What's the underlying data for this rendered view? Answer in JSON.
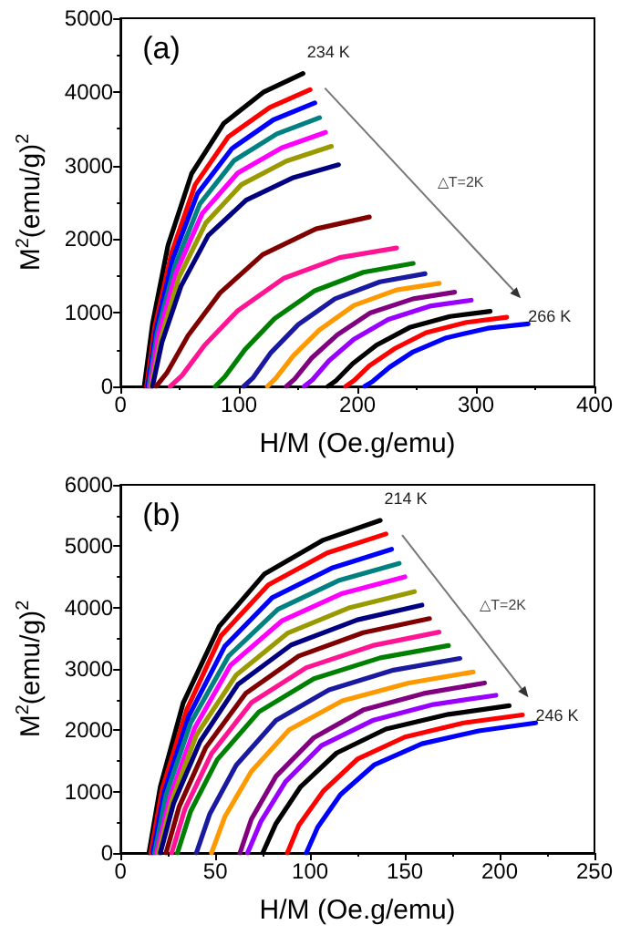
{
  "chart_data": [
    {
      "type": "line",
      "xlabel": "H/M (Oe.g/emu)",
      "ylabel": "M$^{2}$(emu/g)$^{2}$",
      "xlim": [
        0,
        400
      ],
      "ylim": [
        0,
        5000
      ],
      "xticks": [
        0,
        100,
        200,
        300,
        400
      ],
      "yticks": [
        0,
        1000,
        2000,
        3000,
        4000,
        5000
      ],
      "annotations": [
        "(a)",
        "234 K",
        "△T=2K",
        "266 K"
      ],
      "series": [
        {
          "color": "#000000",
          "x": [
            20,
            27,
            40,
            60,
            87,
            121,
            154
          ],
          "values": [
            0,
            850,
            1910,
            2890,
            3570,
            4000,
            4250
          ]
        },
        {
          "color": "#ff0000",
          "x": [
            22,
            29,
            43,
            63,
            91,
            126,
            160
          ],
          "values": [
            0,
            810,
            1810,
            2740,
            3390,
            3790,
            4030
          ]
        },
        {
          "color": "#0000ff",
          "x": [
            23,
            30,
            44,
            65,
            94,
            129,
            164
          ],
          "values": [
            0,
            770,
            1730,
            2620,
            3230,
            3620,
            3850
          ]
        },
        {
          "color": "#008080",
          "x": [
            24,
            31,
            46,
            67,
            96,
            132,
            168
          ],
          "values": [
            0,
            730,
            1640,
            2480,
            3070,
            3430,
            3650
          ]
        },
        {
          "color": "#ff00ff",
          "x": [
            25,
            32,
            47,
            69,
            99,
            136,
            173
          ],
          "values": [
            0,
            690,
            1550,
            2350,
            2900,
            3240,
            3450
          ]
        },
        {
          "color": "#999900",
          "x": [
            26,
            34,
            49,
            72,
            102,
            140,
            178
          ],
          "values": [
            0,
            650,
            1470,
            2220,
            2740,
            3060,
            3260
          ]
        },
        {
          "color": "#000080",
          "x": [
            27,
            35,
            51,
            74,
            106,
            145,
            184
          ],
          "values": [
            0,
            600,
            1360,
            2050,
            2530,
            2830,
            3010
          ]
        },
        {
          "color": "#800000",
          "x": [
            30,
            39,
            57,
            84,
            120,
            165,
            210
          ],
          "values": [
            0,
            180,
            690,
            1270,
            1790,
            2140,
            2300
          ]
        },
        {
          "color": "#ff1493",
          "x": [
            42,
            52,
            71,
            99,
            138,
            185,
            233
          ],
          "values": [
            0,
            150,
            560,
            1030,
            1470,
            1750,
            1880
          ]
        },
        {
          "color": "#008000",
          "x": [
            80,
            88,
            105,
            130,
            164,
            205,
            247
          ],
          "values": [
            0,
            130,
            500,
            920,
            1300,
            1550,
            1670
          ]
        },
        {
          "color": "#1a1aa0",
          "x": [
            104,
            112,
            127,
            150,
            181,
            219,
            257
          ],
          "values": [
            0,
            120,
            460,
            840,
            1190,
            1420,
            1530
          ]
        },
        {
          "color": "#ff9900",
          "x": [
            124,
            131,
            146,
            168,
            197,
            233,
            269
          ],
          "values": [
            0,
            110,
            420,
            770,
            1100,
            1310,
            1400
          ]
        },
        {
          "color": "#800080",
          "x": [
            140,
            147,
            161,
            183,
            211,
            247,
            282
          ],
          "values": [
            0,
            100,
            380,
            700,
            1000,
            1190,
            1280
          ]
        },
        {
          "color": "#9900ff",
          "x": [
            155,
            162,
            176,
            197,
            226,
            261,
            296
          ],
          "values": [
            0,
            90,
            350,
            640,
            910,
            1090,
            1170
          ]
        },
        {
          "color": "#000000",
          "x": [
            175,
            182,
            196,
            216,
            244,
            278,
            312
          ],
          "values": [
            0,
            80,
            310,
            560,
            800,
            950,
            1020
          ]
        },
        {
          "color": "#ff0000",
          "x": [
            190,
            197,
            210,
            231,
            258,
            292,
            326
          ],
          "values": [
            0,
            80,
            280,
            510,
            730,
            870,
            940
          ]
        },
        {
          "color": "#0000ff",
          "x": [
            206,
            213,
            227,
            247,
            275,
            310,
            344
          ],
          "values": [
            0,
            70,
            260,
            470,
            660,
            790,
            850
          ]
        }
      ]
    },
    {
      "type": "line",
      "xlabel": "H/M (Oe.g/emu)",
      "ylabel": "M$^{2}$(emu/g)$^{2}$",
      "xlim": [
        0,
        250
      ],
      "ylim": [
        0,
        6000
      ],
      "xticks": [
        0,
        50,
        100,
        150,
        200,
        250
      ],
      "yticks": [
        0,
        1000,
        2000,
        3000,
        4000,
        5000,
        6000
      ],
      "annotations": [
        "(b)",
        "214 K",
        "△T=2K",
        "246 K"
      ],
      "series": [
        {
          "color": "#000000",
          "x": [
            15,
            21,
            33,
            52,
            76,
            107,
            137
          ],
          "values": [
            0,
            1080,
            2440,
            3690,
            4550,
            5100,
            5420
          ]
        },
        {
          "color": "#ff0000",
          "x": [
            16,
            22,
            35,
            53,
            78,
            109,
            140
          ],
          "values": [
            0,
            1040,
            2340,
            3540,
            4370,
            4890,
            5200
          ]
        },
        {
          "color": "#0000ff",
          "x": [
            17,
            23,
            36,
            55,
            80,
            112,
            143
          ],
          "values": [
            0,
            990,
            2230,
            3370,
            4160,
            4650,
            4950
          ]
        },
        {
          "color": "#008080",
          "x": [
            18,
            24,
            37,
            57,
            83,
            115,
            147
          ],
          "values": [
            0,
            940,
            2120,
            3210,
            3970,
            4440,
            4720
          ]
        },
        {
          "color": "#ff00ff",
          "x": [
            19,
            26,
            39,
            58,
            85,
            117,
            150
          ],
          "values": [
            0,
            900,
            2030,
            3060,
            3780,
            4230,
            4500
          ]
        },
        {
          "color": "#999900",
          "x": [
            20,
            27,
            40,
            61,
            88,
            121,
            155
          ],
          "values": [
            0,
            850,
            1920,
            2900,
            3580,
            4000,
            4260
          ]
        },
        {
          "color": "#000080",
          "x": [
            21,
            28,
            42,
            62,
            90,
            125,
            159
          ],
          "values": [
            0,
            810,
            1820,
            2750,
            3390,
            3800,
            4040
          ]
        },
        {
          "color": "#800000",
          "x": [
            24,
            31,
            45,
            66,
            94,
            128,
            163
          ],
          "values": [
            0,
            760,
            1720,
            2600,
            3210,
            3590,
            3820
          ]
        },
        {
          "color": "#ff1493",
          "x": [
            27,
            34,
            48,
            69,
            98,
            133,
            168
          ],
          "values": [
            0,
            720,
            1620,
            2450,
            3020,
            3380,
            3600
          ]
        },
        {
          "color": "#008000",
          "x": [
            30,
            37,
            51,
            73,
            102,
            137,
            173
          ],
          "values": [
            0,
            680,
            1520,
            2300,
            2840,
            3180,
            3380
          ]
        },
        {
          "color": "#1a1aa0",
          "x": [
            40,
            47,
            61,
            82,
            110,
            144,
            179
          ],
          "values": [
            0,
            630,
            1430,
            2160,
            2660,
            2980,
            3170
          ]
        },
        {
          "color": "#ff9900",
          "x": [
            48,
            55,
            69,
            89,
            117,
            152,
            186
          ],
          "values": [
            0,
            590,
            1330,
            2010,
            2480,
            2770,
            2950
          ]
        },
        {
          "color": "#800080",
          "x": [
            63,
            69,
            82,
            102,
            128,
            160,
            192
          ],
          "values": [
            0,
            550,
            1250,
            1880,
            2330,
            2600,
            2770
          ]
        },
        {
          "color": "#9900ff",
          "x": [
            67,
            74,
            87,
            106,
            133,
            165,
            198
          ],
          "values": [
            0,
            510,
            1160,
            1750,
            2160,
            2420,
            2570
          ]
        },
        {
          "color": "#000000",
          "x": [
            75,
            82,
            95,
            114,
            140,
            173,
            205
          ],
          "values": [
            0,
            480,
            1080,
            1630,
            2020,
            2260,
            2400
          ]
        },
        {
          "color": "#ff0000",
          "x": [
            88,
            94,
            107,
            125,
            150,
            181,
            212
          ],
          "values": [
            0,
            450,
            1010,
            1530,
            1890,
            2120,
            2250
          ]
        },
        {
          "color": "#0000ff",
          "x": [
            98,
            104,
            116,
            134,
            159,
            189,
            219
          ],
          "values": [
            0,
            420,
            950,
            1440,
            1780,
            1990,
            2120
          ]
        }
      ]
    }
  ]
}
